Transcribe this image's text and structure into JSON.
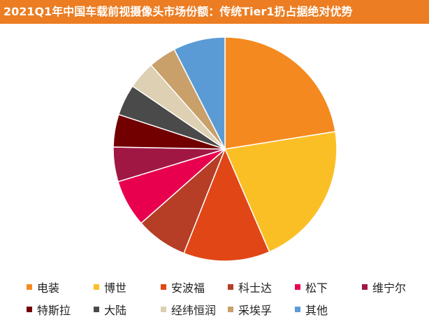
{
  "header": {
    "title": "2021Q1年中国车载前视摄像头市场份额：传统Tier1扔占据绝对优势"
  },
  "chart_data": {
    "type": "pie",
    "title": "2021Q1年中国车载前视摄像头市场份额：传统Tier1扔占据绝对优势",
    "slices": [
      {
        "label": "电装",
        "value": 22.5,
        "color": "#f48a1f"
      },
      {
        "label": "博世",
        "value": 21.0,
        "color": "#fbbf26"
      },
      {
        "label": "安波福",
        "value": 12.5,
        "color": "#e14616"
      },
      {
        "label": "科士达",
        "value": 7.5,
        "color": "#b63d26"
      },
      {
        "label": "松下",
        "value": 6.8,
        "color": "#e8004f"
      },
      {
        "label": "维宁尔",
        "value": 5.0,
        "color": "#a11744"
      },
      {
        "label": "特斯拉",
        "value": 4.7,
        "color": "#720000"
      },
      {
        "label": "大陆",
        "value": 4.5,
        "color": "#4a4a4a"
      },
      {
        "label": "经纬恒润",
        "value": 4.0,
        "color": "#ddd0b3"
      },
      {
        "label": "采埃孚",
        "value": 4.0,
        "color": "#c9a06a"
      },
      {
        "label": "其他",
        "value": 7.5,
        "color": "#5b9bd5"
      }
    ],
    "legend_position": "bottom"
  }
}
